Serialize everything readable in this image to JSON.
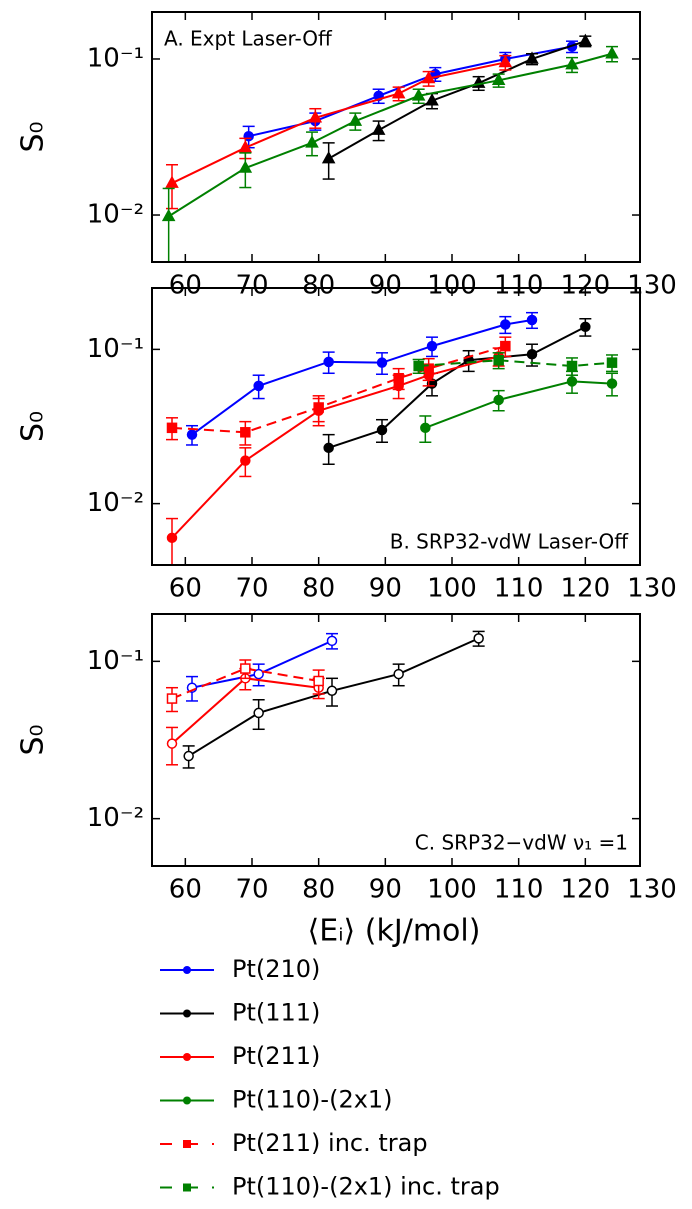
{
  "chart_data": [
    {
      "type": "line",
      "annotation": "A. Expt Laser-Off",
      "annotation_corner": "upper left",
      "ylabel": "S₀",
      "log_y": true,
      "xlim": [
        55,
        128.2
      ],
      "xticks": [
        60,
        70,
        80,
        90,
        100,
        110,
        120,
        130
      ],
      "ylim": [
        0.005,
        0.2
      ],
      "yticks": [
        {
          "value": 0.01,
          "label": "10⁻²"
        },
        {
          "value": 0.1,
          "label": "10⁻¹"
        }
      ],
      "series": [
        {
          "color": "#0000ff",
          "marker": "circle",
          "filled": true,
          "linestyle": "solid",
          "x": [
            69.5,
            79.5,
            89,
            97.5,
            108,
            118
          ],
          "values": [
            0.032,
            0.04,
            0.058,
            0.08,
            0.1,
            0.12
          ],
          "errors": [
            0.005,
            0.005,
            0.006,
            0.008,
            0.01,
            0.01
          ]
        },
        {
          "color": "#000000",
          "marker": "triangle",
          "filled": true,
          "linestyle": "solid",
          "x": [
            81.5,
            89,
            97,
            104,
            112,
            120
          ],
          "values": [
            0.023,
            0.035,
            0.054,
            0.07,
            0.1,
            0.13
          ],
          "errors": [
            0.006,
            0.005,
            0.006,
            0.007,
            0.008,
            0.01
          ]
        },
        {
          "color": "#ff0000",
          "marker": "triangle",
          "filled": true,
          "linestyle": "solid",
          "x": [
            58,
            69,
            79.5,
            92,
            96.5,
            108
          ],
          "values": [
            0.016,
            0.027,
            0.042,
            0.06,
            0.075,
            0.095
          ],
          "errors": [
            0.005,
            0.004,
            0.006,
            0.006,
            0.008,
            0.01
          ]
        },
        {
          "color": "#008000",
          "marker": "triangle",
          "filled": true,
          "linestyle": "solid",
          "x": [
            57.5,
            69,
            79,
            85.5,
            95,
            107,
            118,
            124
          ],
          "values": [
            0.0098,
            0.02,
            0.029,
            0.04,
            0.058,
            0.073,
            0.092,
            0.108
          ],
          "errors": [
            0.005,
            0.005,
            0.005,
            0.005,
            0.006,
            0.007,
            0.01,
            0.012
          ]
        }
      ]
    },
    {
      "type": "line",
      "annotation": "B. SRP32-vdW Laser-Off",
      "annotation_corner": "lower right",
      "ylabel": "S₀",
      "log_y": true,
      "xlim": [
        55,
        128.2
      ],
      "xticks": [
        60,
        70,
        80,
        90,
        100,
        110,
        120,
        130
      ],
      "ylim": [
        0.004,
        0.25
      ],
      "yticks": [
        {
          "value": 0.01,
          "label": "10⁻²"
        },
        {
          "value": 0.1,
          "label": "10⁻¹"
        }
      ],
      "legend": "below",
      "series": [
        {
          "name": "Pt(210)",
          "color": "#0000ff",
          "marker": "circle",
          "filled": true,
          "linestyle": "solid",
          "x": [
            61,
            71,
            81.5,
            89.5,
            97,
            108,
            112
          ],
          "values": [
            0.028,
            0.058,
            0.083,
            0.082,
            0.105,
            0.145,
            0.155
          ],
          "errors": [
            0.004,
            0.01,
            0.013,
            0.013,
            0.015,
            0.018,
            0.018
          ]
        },
        {
          "name": "Pt(111)",
          "color": "#000000",
          "marker": "circle",
          "filled": true,
          "linestyle": "solid",
          "x": [
            81.5,
            89.5,
            97,
            102.5,
            112,
            120
          ],
          "values": [
            0.023,
            0.03,
            0.06,
            0.085,
            0.093,
            0.14
          ],
          "errors": [
            0.005,
            0.005,
            0.01,
            0.013,
            0.015,
            0.018
          ]
        },
        {
          "name": "Pt(211)",
          "color": "#ff0000",
          "marker": "circle",
          "filled": true,
          "linestyle": "solid",
          "x": [
            58,
            69,
            80,
            92,
            96.5,
            107
          ],
          "values": [
            0.006,
            0.019,
            0.04,
            0.058,
            0.068,
            0.09
          ],
          "errors": [
            0.002,
            0.004,
            0.008,
            0.01,
            0.01,
            0.012
          ]
        },
        {
          "name": "Pt(110)-(2x1)",
          "color": "#008000",
          "marker": "circle",
          "filled": true,
          "linestyle": "solid",
          "x": [
            96,
            107,
            118,
            124
          ],
          "values": [
            0.031,
            0.047,
            0.062,
            0.06
          ],
          "errors": [
            0.006,
            0.007,
            0.01,
            0.01
          ]
        },
        {
          "name": "Pt(211) inc. trap",
          "color": "#ff0000",
          "marker": "square",
          "filled": true,
          "linestyle": "dashed",
          "x": [
            58,
            69,
            80,
            92,
            96.5,
            108
          ],
          "values": [
            0.031,
            0.029,
            0.042,
            0.065,
            0.075,
            0.105
          ],
          "errors": [
            0.005,
            0.005,
            0.008,
            0.01,
            0.012,
            0.015
          ]
        },
        {
          "name": "Pt(110)-(2x1) inc. trap",
          "color": "#008000",
          "marker": "square",
          "filled": true,
          "linestyle": "dashed",
          "x": [
            95,
            107,
            118,
            124
          ],
          "values": [
            0.078,
            0.085,
            0.078,
            0.082
          ],
          "errors": [
            0.008,
            0.01,
            0.01,
            0.01
          ]
        }
      ]
    },
    {
      "type": "line",
      "annotation": "C. SRP32−vdW ν₁ =1",
      "annotation_corner": "lower right",
      "ylabel": "S₀",
      "xlabel": "⟨Eᵢ⟩ (kJ/mol)",
      "log_y": true,
      "xlim": [
        55,
        128.2
      ],
      "xticks": [
        60,
        70,
        80,
        90,
        100,
        110,
        120,
        130
      ],
      "ylim": [
        0.005,
        0.2
      ],
      "yticks": [
        {
          "value": 0.01,
          "label": "10⁻²"
        },
        {
          "value": 0.1,
          "label": "10⁻¹"
        }
      ],
      "series": [
        {
          "color": "#0000ff",
          "marker": "circle",
          "filled": false,
          "linestyle": "solid",
          "x": [
            61,
            71,
            82
          ],
          "values": [
            0.068,
            0.083,
            0.135
          ],
          "errors": [
            0.012,
            0.013,
            0.015
          ]
        },
        {
          "color": "#000000",
          "marker": "circle",
          "filled": false,
          "linestyle": "solid",
          "x": [
            60.5,
            71,
            82,
            92,
            104
          ],
          "values": [
            0.025,
            0.047,
            0.065,
            0.083,
            0.14
          ],
          "errors": [
            0.004,
            0.01,
            0.013,
            0.013,
            0.015
          ]
        },
        {
          "color": "#ff0000",
          "marker": "circle",
          "filled": false,
          "linestyle": "solid",
          "x": [
            58,
            69,
            80
          ],
          "values": [
            0.03,
            0.078,
            0.068
          ],
          "errors": [
            0.008,
            0.012,
            0.01
          ]
        },
        {
          "color": "#ff0000",
          "marker": "square",
          "filled": false,
          "linestyle": "dashed",
          "x": [
            58,
            69,
            80
          ],
          "values": [
            0.058,
            0.09,
            0.075
          ],
          "errors": [
            0.01,
            0.012,
            0.013
          ]
        }
      ]
    }
  ]
}
